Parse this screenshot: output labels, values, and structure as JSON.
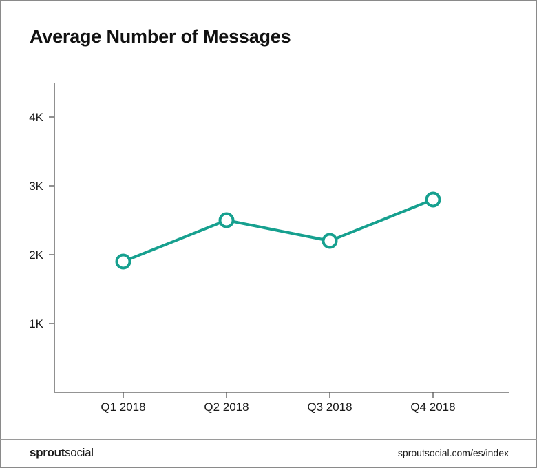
{
  "title": "Average Number of Messages",
  "brand": {
    "part1": "sprout",
    "part2": "social"
  },
  "source": "sproutsocial.com/es/index",
  "colors": {
    "line": "#16a08f",
    "axis": "#555555",
    "text": "#1a1a1a"
  },
  "chart_data": {
    "type": "line",
    "title": "Average Number of Messages",
    "categories": [
      "Q1 2018",
      "Q2 2018",
      "Q3 2018",
      "Q4 2018"
    ],
    "series": [
      {
        "values": [
          1900,
          2500,
          2200,
          2800
        ]
      }
    ],
    "y_ticks": [
      1000,
      2000,
      3000,
      4000
    ],
    "y_tick_labels": [
      "1K",
      "2K",
      "3K",
      "4K"
    ],
    "ylim": [
      0,
      4500
    ],
    "xlabel": "",
    "ylabel": "",
    "grid": false,
    "legend": "none",
    "markers": "hollow-circle"
  }
}
